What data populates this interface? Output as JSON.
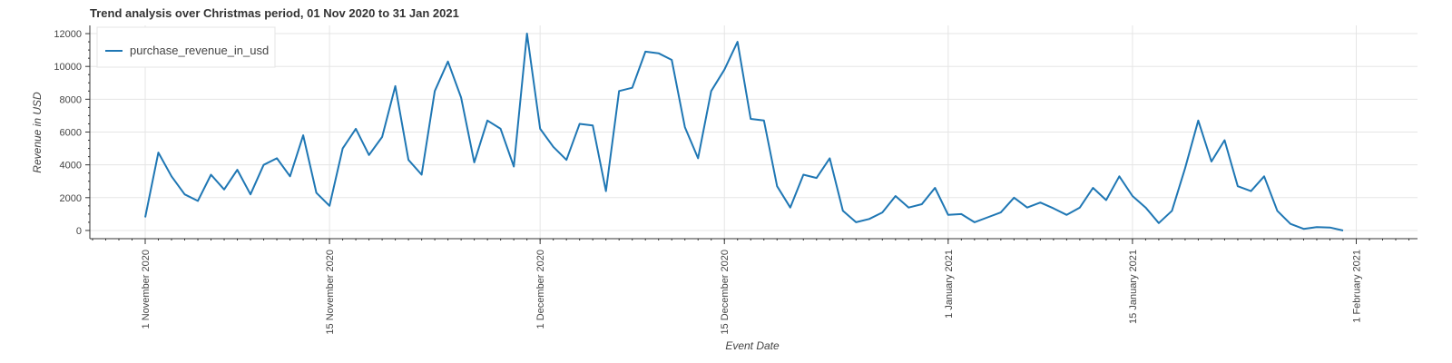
{
  "chart_data": {
    "type": "line",
    "title": "Trend analysis over Christmas period, 01 Nov 2020 to 31 Jan 2021",
    "xlabel": "Event Date",
    "ylabel": "Revenue in USD",
    "x_start": "2020-11-01",
    "ylim": [
      -500,
      12500
    ],
    "yticks": [
      0,
      2000,
      4000,
      6000,
      8000,
      10000,
      12000
    ],
    "xticks": [
      {
        "date": "2020-11-01",
        "label": "1 November 2020"
      },
      {
        "date": "2020-11-15",
        "label": "15 November 2020"
      },
      {
        "date": "2020-12-01",
        "label": "1 December 2020"
      },
      {
        "date": "2020-12-15",
        "label": "15 December 2020"
      },
      {
        "date": "2021-01-01",
        "label": "1 January 2021"
      },
      {
        "date": "2021-01-15",
        "label": "15 January 2021"
      },
      {
        "date": "2021-02-01",
        "label": "1 February 2021"
      }
    ],
    "grid": true,
    "legend_position": "top-left",
    "series": [
      {
        "name": "purchase_revenue_in_usd",
        "color": "#1f77b4",
        "values": [
          800,
          4750,
          3300,
          2200,
          1800,
          3400,
          2500,
          3700,
          2200,
          4000,
          4400,
          3300,
          5800,
          2300,
          1500,
          5000,
          6200,
          4600,
          5700,
          8800,
          4300,
          3400,
          8500,
          10300,
          8100,
          4150,
          6700,
          6200,
          3900,
          12000,
          6200,
          5100,
          4300,
          6500,
          6400,
          2400,
          8500,
          8700,
          10900,
          10800,
          10400,
          6300,
          4400,
          8500,
          9800,
          11500,
          6800,
          6700,
          2700,
          1400,
          3400,
          3200,
          4400,
          1200,
          500,
          700,
          1100,
          2100,
          1400,
          1600,
          2600,
          950,
          1000,
          500,
          800,
          1100,
          2000,
          1400,
          1700,
          1350,
          950,
          1400,
          2600,
          1850,
          3300,
          2100,
          1400,
          450,
          1200,
          3800,
          6700,
          4200,
          5500,
          2700,
          2400,
          3300,
          1200,
          400,
          100,
          200,
          180,
          0
        ]
      }
    ]
  }
}
